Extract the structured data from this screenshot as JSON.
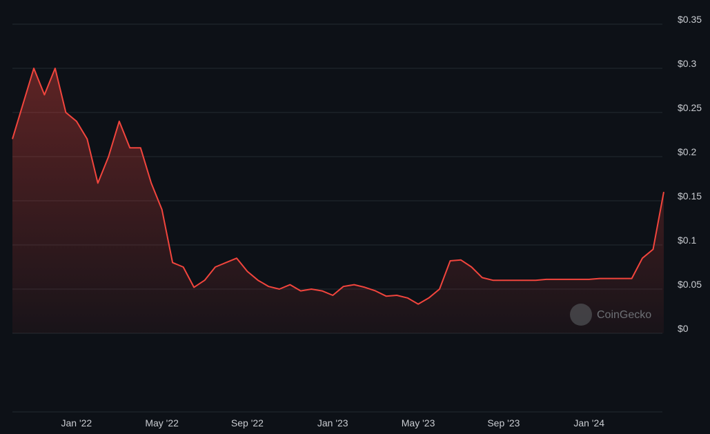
{
  "chart_data": {
    "type": "area",
    "watermark": "CoinGecko",
    "color": "#f2453d",
    "grid": true,
    "categories": [
      null,
      null,
      null,
      null,
      null,
      null,
      "Jan '22",
      null,
      null,
      null,
      null,
      null,
      null,
      null,
      "May '22",
      null,
      null,
      null,
      null,
      null,
      null,
      null,
      "Sep '22",
      null,
      null,
      null,
      null,
      null,
      null,
      null,
      "Jan '23",
      null,
      null,
      null,
      null,
      null,
      null,
      null,
      "May '23",
      null,
      null,
      null,
      null,
      null,
      null,
      null,
      "Sep '23",
      null,
      null,
      null,
      null,
      null,
      null,
      null,
      "Jan '24",
      null,
      null,
      null,
      null,
      null,
      null,
      null
    ],
    "values": [
      0.22,
      0.26,
      0.3,
      0.27,
      0.3,
      0.25,
      0.24,
      0.22,
      0.17,
      0.2,
      0.24,
      0.21,
      0.21,
      0.17,
      0.14,
      0.08,
      0.075,
      0.052,
      0.06,
      0.075,
      0.08,
      0.085,
      0.07,
      0.06,
      0.053,
      0.05,
      0.055,
      0.048,
      0.05,
      0.048,
      0.043,
      0.053,
      0.055,
      0.052,
      0.048,
      0.042,
      0.043,
      0.04,
      0.033,
      0.04,
      0.05,
      0.082,
      0.083,
      0.075,
      0.063,
      0.06,
      0.06,
      0.06,
      0.06,
      0.06,
      0.061,
      0.061,
      0.061,
      0.061,
      0.061,
      0.062,
      0.062,
      0.062,
      0.062,
      0.085,
      0.095,
      0.16
    ],
    "ylim": [
      0,
      0.35
    ],
    "yticks": [
      {
        "value": 0,
        "label": "$0"
      },
      {
        "value": 0.05,
        "label": "$0.05"
      },
      {
        "value": 0.1,
        "label": "$0.1"
      },
      {
        "value": 0.15,
        "label": "$0.15"
      },
      {
        "value": 0.2,
        "label": "$0.2"
      },
      {
        "value": 0.25,
        "label": "$0.25"
      },
      {
        "value": 0.3,
        "label": "$0.3"
      },
      {
        "value": 0.35,
        "label": "$0.35"
      }
    ]
  }
}
